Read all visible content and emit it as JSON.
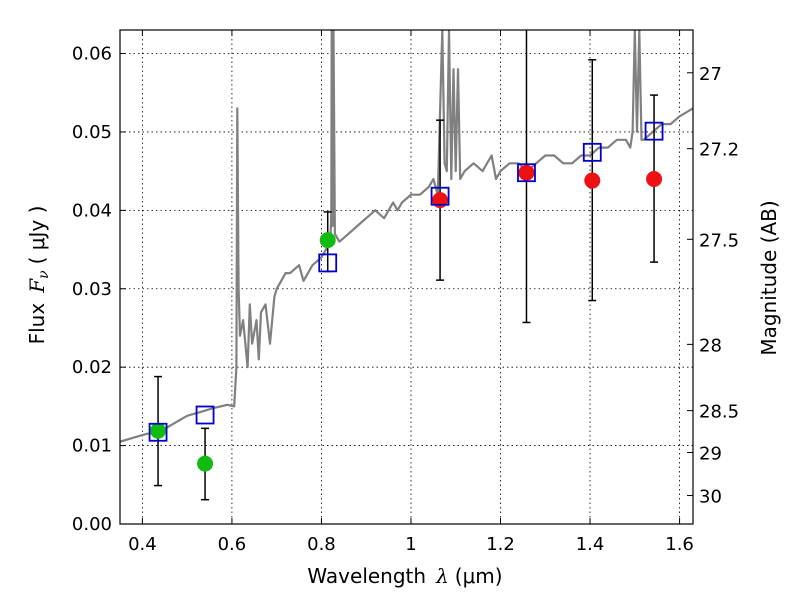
{
  "chart_data": {
    "type": "scatter",
    "xlabel_prefix": "Wavelength",
    "xlabel_symbol": "λ",
    "xlabel_unit": "(μm)",
    "ylabel_prefix": "Flux",
    "ylabel_symbol": "F",
    "ylabel_subscript": "ν",
    "ylabel_unit": "( μJy )",
    "y2label": "Magnitude (AB)",
    "xlim": [
      0.35,
      1.63
    ],
    "ylim": [
      0.0,
      0.063
    ],
    "xticks": [
      "0.4",
      "0.6",
      "0.8",
      "1",
      "1.2",
      "1.4",
      "1.6"
    ],
    "xtick_values": [
      0.4,
      0.6,
      0.8,
      1.0,
      1.2,
      1.4,
      1.6
    ],
    "yticks": [
      "0.00",
      "0.01",
      "0.02",
      "0.03",
      "0.04",
      "0.05",
      "0.06"
    ],
    "ytick_values": [
      0.0,
      0.01,
      0.02,
      0.03,
      0.04,
      0.05,
      0.06
    ],
    "y2ticks": [
      "27",
      "27.2",
      "27.5",
      "28",
      "28.5",
      "29",
      "30"
    ],
    "y2tick_values": [
      27.0,
      27.2,
      27.5,
      28.0,
      28.5,
      29.0,
      30.0
    ],
    "grid": true,
    "colors": {
      "model": "#808080",
      "green": "#11bb11",
      "red": "#ee1111",
      "square": "#0000cc",
      "errorbar": "#000000"
    },
    "model_spectrum": {
      "name": "",
      "x": [
        0.35,
        0.38,
        0.41,
        0.44,
        0.47,
        0.5,
        0.53,
        0.56,
        0.59,
        0.605,
        0.61,
        0.612,
        0.615,
        0.618,
        0.625,
        0.635,
        0.64,
        0.645,
        0.655,
        0.66,
        0.665,
        0.675,
        0.685,
        0.695,
        0.7,
        0.71,
        0.72,
        0.73,
        0.75,
        0.76,
        0.78,
        0.8,
        0.81,
        0.82,
        0.822,
        0.823,
        0.825,
        0.827,
        0.83,
        0.84,
        0.86,
        0.88,
        0.9,
        0.92,
        0.94,
        0.96,
        0.97,
        0.98,
        1.0,
        1.02,
        1.04,
        1.05,
        1.06,
        1.07,
        1.075,
        1.08,
        1.085,
        1.09,
        1.095,
        1.1,
        1.105,
        1.11,
        1.12,
        1.14,
        1.16,
        1.18,
        1.19,
        1.2,
        1.22,
        1.24,
        1.26,
        1.28,
        1.3,
        1.32,
        1.34,
        1.36,
        1.38,
        1.4,
        1.42,
        1.44,
        1.46,
        1.48,
        1.49,
        1.495,
        1.5,
        1.505,
        1.51,
        1.515,
        1.52,
        1.54,
        1.56,
        1.58,
        1.6,
        1.63
      ],
      "y": [
        0.0105,
        0.011,
        0.0115,
        0.0118,
        0.0128,
        0.0138,
        0.0143,
        0.0148,
        0.0152,
        0.015,
        0.02,
        0.053,
        0.03,
        0.024,
        0.026,
        0.02,
        0.028,
        0.023,
        0.026,
        0.021,
        0.027,
        0.028,
        0.023,
        0.029,
        0.03,
        0.031,
        0.032,
        0.032,
        0.033,
        0.031,
        0.033,
        0.034,
        0.035,
        0.036,
        0.04,
        0.063,
        0.038,
        0.063,
        0.037,
        0.036,
        0.037,
        0.038,
        0.039,
        0.04,
        0.039,
        0.041,
        0.04,
        0.041,
        0.042,
        0.042,
        0.043,
        0.044,
        0.042,
        0.063,
        0.046,
        0.045,
        0.063,
        0.044,
        0.058,
        0.045,
        0.058,
        0.044,
        0.045,
        0.046,
        0.045,
        0.047,
        0.044,
        0.045,
        0.046,
        0.046,
        0.045,
        0.046,
        0.047,
        0.047,
        0.046,
        0.046,
        0.047,
        0.047,
        0.048,
        0.048,
        0.049,
        0.049,
        0.048,
        0.05,
        0.063,
        0.05,
        0.063,
        0.049,
        0.049,
        0.05,
        0.051,
        0.051,
        0.052,
        0.053
      ]
    },
    "model_photometry": {
      "name": "",
      "x": [
        0.435,
        0.54,
        0.814,
        1.065,
        1.258,
        1.405,
        1.543
      ],
      "y": [
        0.0117,
        0.0139,
        0.0333,
        0.0418,
        0.0448,
        0.0474,
        0.0501
      ]
    },
    "green_points": {
      "name": "",
      "x": [
        0.435,
        0.54,
        0.814
      ],
      "y": [
        0.0119,
        0.0077,
        0.0362
      ],
      "yerr_low": [
        0.0049,
        0.0031,
        0.0322
      ],
      "yerr_high": [
        0.0188,
        0.0122,
        0.0398
      ]
    },
    "red_points": {
      "name": "",
      "x": [
        1.065,
        1.258,
        1.405,
        1.543
      ],
      "y": [
        0.0413,
        0.0448,
        0.0438,
        0.044
      ],
      "yerr_low": [
        0.0311,
        0.0257,
        0.0285,
        0.0334
      ],
      "yerr_high": [
        0.0515,
        0.064,
        0.0592,
        0.0547
      ]
    }
  }
}
